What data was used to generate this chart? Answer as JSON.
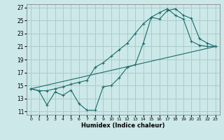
{
  "background_color": "#cce8e8",
  "grid_color": "#aacccc",
  "line_color": "#1a6b6b",
  "xlabel": "Humidex (Indice chaleur)",
  "xlim": [
    -0.5,
    23.5
  ],
  "ylim": [
    10.5,
    27.5
  ],
  "yticks": [
    11,
    13,
    15,
    17,
    19,
    21,
    23,
    25,
    27
  ],
  "xticks": [
    0,
    1,
    2,
    3,
    4,
    5,
    6,
    7,
    8,
    9,
    10,
    11,
    12,
    13,
    14,
    15,
    16,
    17,
    18,
    19,
    20,
    21,
    22,
    23
  ],
  "curve1_x": [
    0,
    1,
    2,
    3,
    4,
    5,
    6,
    7,
    8,
    9,
    10,
    11,
    12,
    13,
    14,
    15,
    16,
    17,
    18,
    19,
    20,
    21,
    22,
    23
  ],
  "curve1_y": [
    14.5,
    14.2,
    12.0,
    14.0,
    13.5,
    14.3,
    12.2,
    11.2,
    11.2,
    14.8,
    15.0,
    16.2,
    17.8,
    18.2,
    21.5,
    25.5,
    25.2,
    26.5,
    26.8,
    25.8,
    25.3,
    22.2,
    21.5,
    21.0
  ],
  "curve2_x": [
    0,
    1,
    2,
    3,
    4,
    5,
    6,
    7,
    8,
    9,
    10,
    11,
    12,
    13,
    14,
    15,
    16,
    17,
    18,
    19,
    20,
    21,
    22,
    23
  ],
  "curve2_y": [
    14.5,
    14.2,
    14.2,
    14.5,
    14.8,
    15.2,
    15.5,
    15.8,
    17.8,
    18.5,
    19.5,
    20.5,
    21.5,
    23.0,
    24.5,
    25.5,
    26.2,
    26.8,
    25.8,
    25.2,
    21.8,
    21.2,
    21.0,
    21.0
  ],
  "line_x": [
    0,
    23
  ],
  "line_y": [
    14.5,
    21.0
  ]
}
